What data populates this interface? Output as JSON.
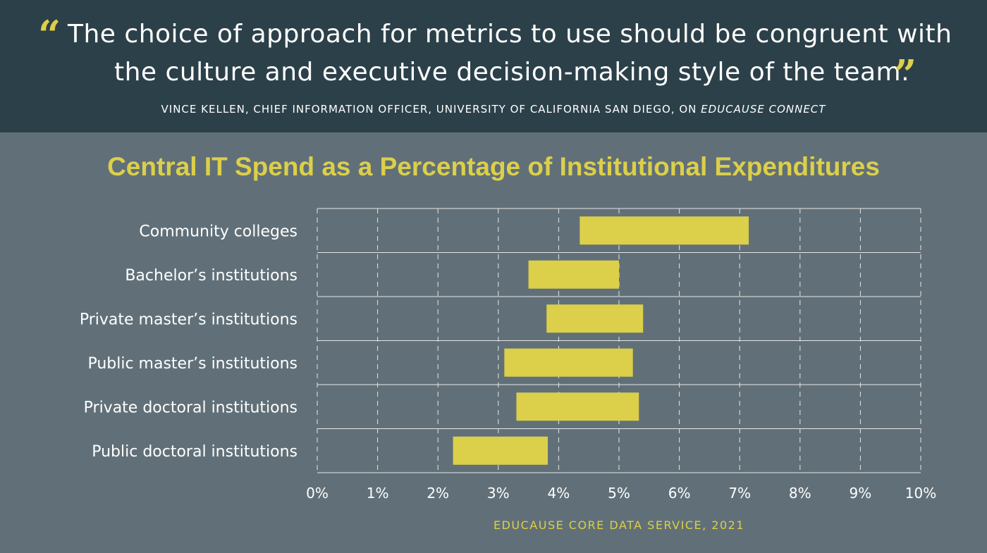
{
  "quote": {
    "line1": "The choice of approach for metrics to use should be congruent with",
    "line2": "the culture and executive decision-making style of the team.",
    "open_mark": "“",
    "close_mark": "”",
    "attribution_main": "VINCE KELLEN, CHIEF INFORMATION OFFICER, UNIVERSITY OF CALIFORNIA SAN DIEGO, ON ",
    "attribution_source": "EDUCAUSE CONNECT"
  },
  "source_note": "EDUCAUSE CORE DATA SERVICE, 2021",
  "colors": {
    "background": "#617078",
    "quote_band": "#2c4049",
    "accent": "#dccf4a",
    "bar": "#dccf4a",
    "grid": "#e6e6e6"
  },
  "chart_data": {
    "type": "bar",
    "orientation": "horizontal",
    "title": "Central IT Spend as a Percentage of Institutional Expenditures",
    "categories": [
      "Community colleges",
      "Bachelor’s institutions",
      "Private master’s institutions",
      "Public master’s institutions",
      "Private doctoral institutions",
      "Public doctoral institutions"
    ],
    "ranges": [
      [
        4.35,
        7.15
      ],
      [
        3.5,
        5.0
      ],
      [
        3.8,
        5.4
      ],
      [
        3.1,
        5.23
      ],
      [
        3.3,
        5.33
      ],
      [
        2.25,
        3.82
      ]
    ],
    "xlim": [
      0,
      10
    ],
    "xticks": [
      0,
      1,
      2,
      3,
      4,
      5,
      6,
      7,
      8,
      9,
      10
    ],
    "xtick_labels": [
      "0%",
      "1%",
      "2%",
      "3%",
      "4%",
      "5%",
      "6%",
      "7%",
      "8%",
      "9%",
      "10%"
    ],
    "grid": true,
    "legend": "none"
  }
}
